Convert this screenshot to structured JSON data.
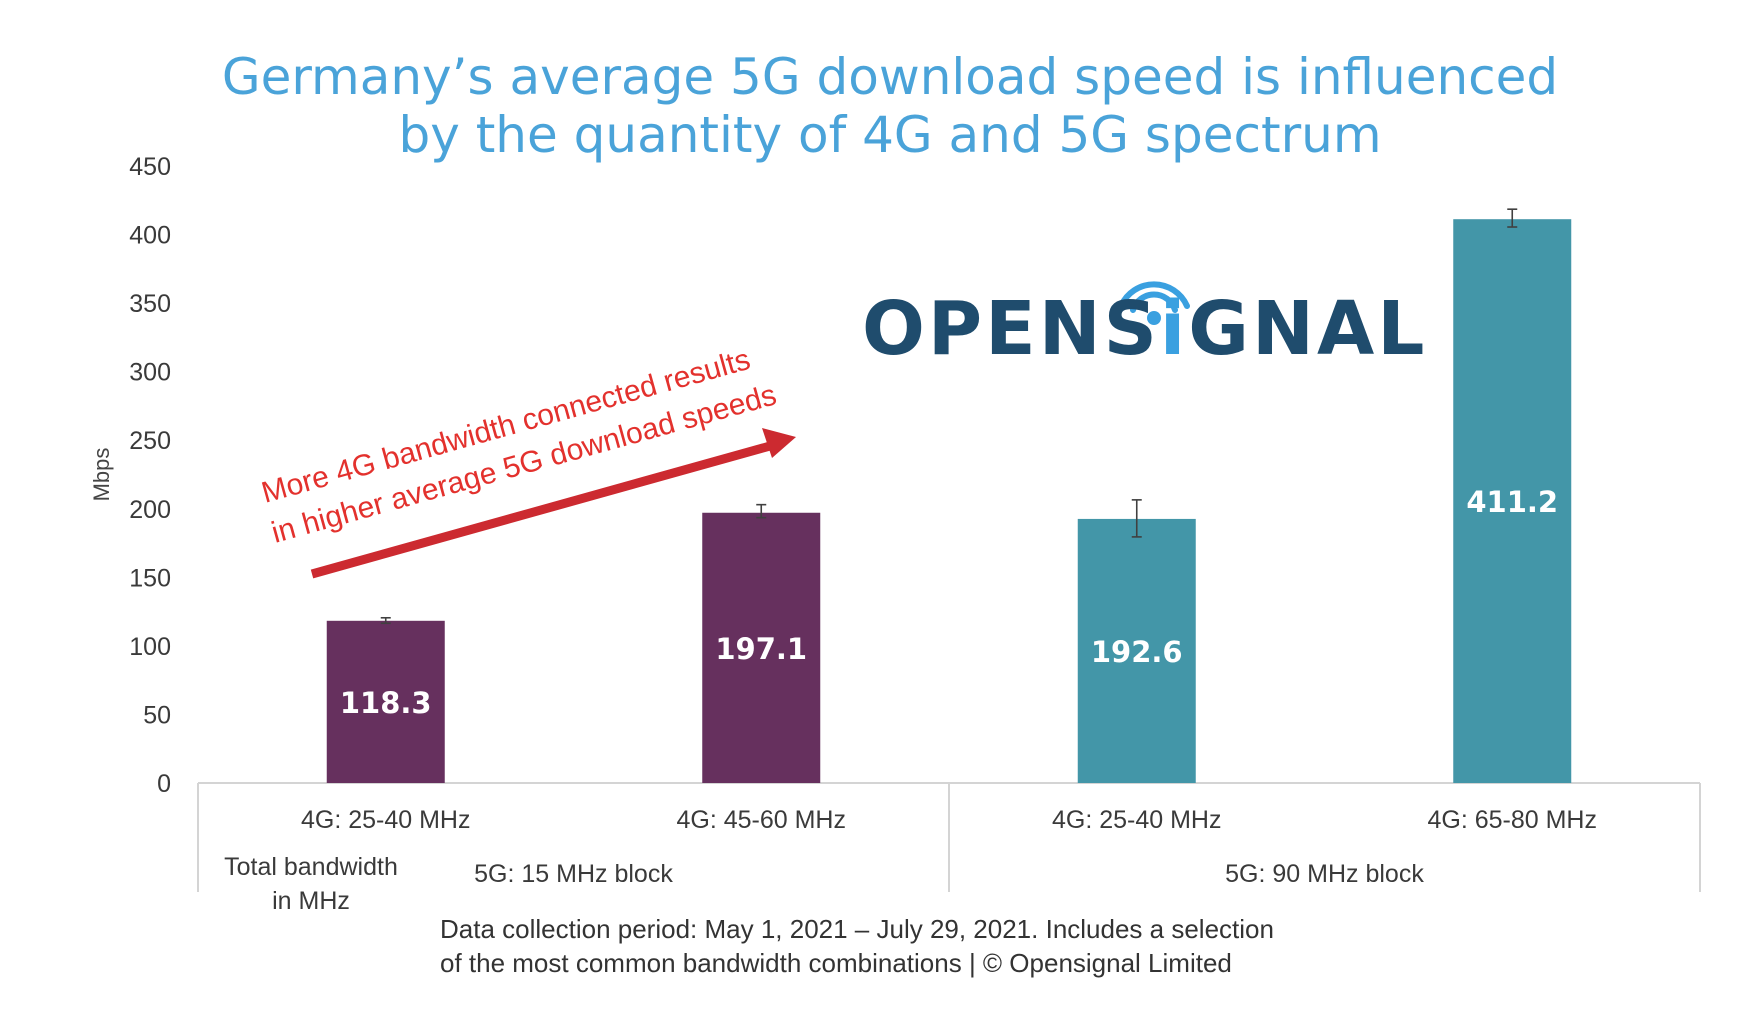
{
  "title": {
    "line1": "Germany’s average 5G download speed is influenced",
    "line2": "by the quantity of 4G and 5G spectrum"
  },
  "logo": {
    "text_before": "OPENS",
    "text_i": "i",
    "text_after": "GNAL",
    "color": "#1f4c6d",
    "accent": "#3aa0e0"
  },
  "annotation": {
    "line1": "More 4G bandwidth connected results",
    "line2": "in higher average 5G download speeds",
    "color": "#e3312d"
  },
  "footer": {
    "line1": "Data collection period: May 1, 2021 – July 29, 2021. Includes a selection",
    "line2": "of the most common bandwidth combinations | © Opensignal Limited"
  },
  "chart_data": {
    "type": "bar",
    "ylabel": "Mbps",
    "ylim": [
      0,
      450
    ],
    "yticks": [
      0,
      50,
      100,
      150,
      200,
      250,
      300,
      350,
      400,
      450
    ],
    "categories": [
      "4G: 25-40 MHz",
      "4G: 45-60 MHz",
      "4G: 25-40 MHz",
      "4G: 65-80 MHz"
    ],
    "values": [
      118.3,
      197.1,
      192.6,
      411.2
    ],
    "value_labels": [
      "118.3",
      "197.1",
      "192.6",
      "411.2"
    ],
    "error_low": [
      116.5,
      193.5,
      179.5,
      405.5
    ],
    "error_high": [
      120.5,
      203,
      206.5,
      418.5
    ],
    "bar_colors": [
      "#66305e",
      "#66305e",
      "#4396a8",
      "#4396a8"
    ],
    "groups": [
      {
        "label": "5G: 15 MHz block",
        "categories": [
          0,
          1
        ]
      },
      {
        "label": "5G:  90 MHz block",
        "categories": [
          2,
          3
        ]
      }
    ],
    "group_axis_label": "Total bandwidth in MHz",
    "group_axis_label_lines": [
      "Total bandwidth",
      "in MHz"
    ],
    "grid": false
  }
}
